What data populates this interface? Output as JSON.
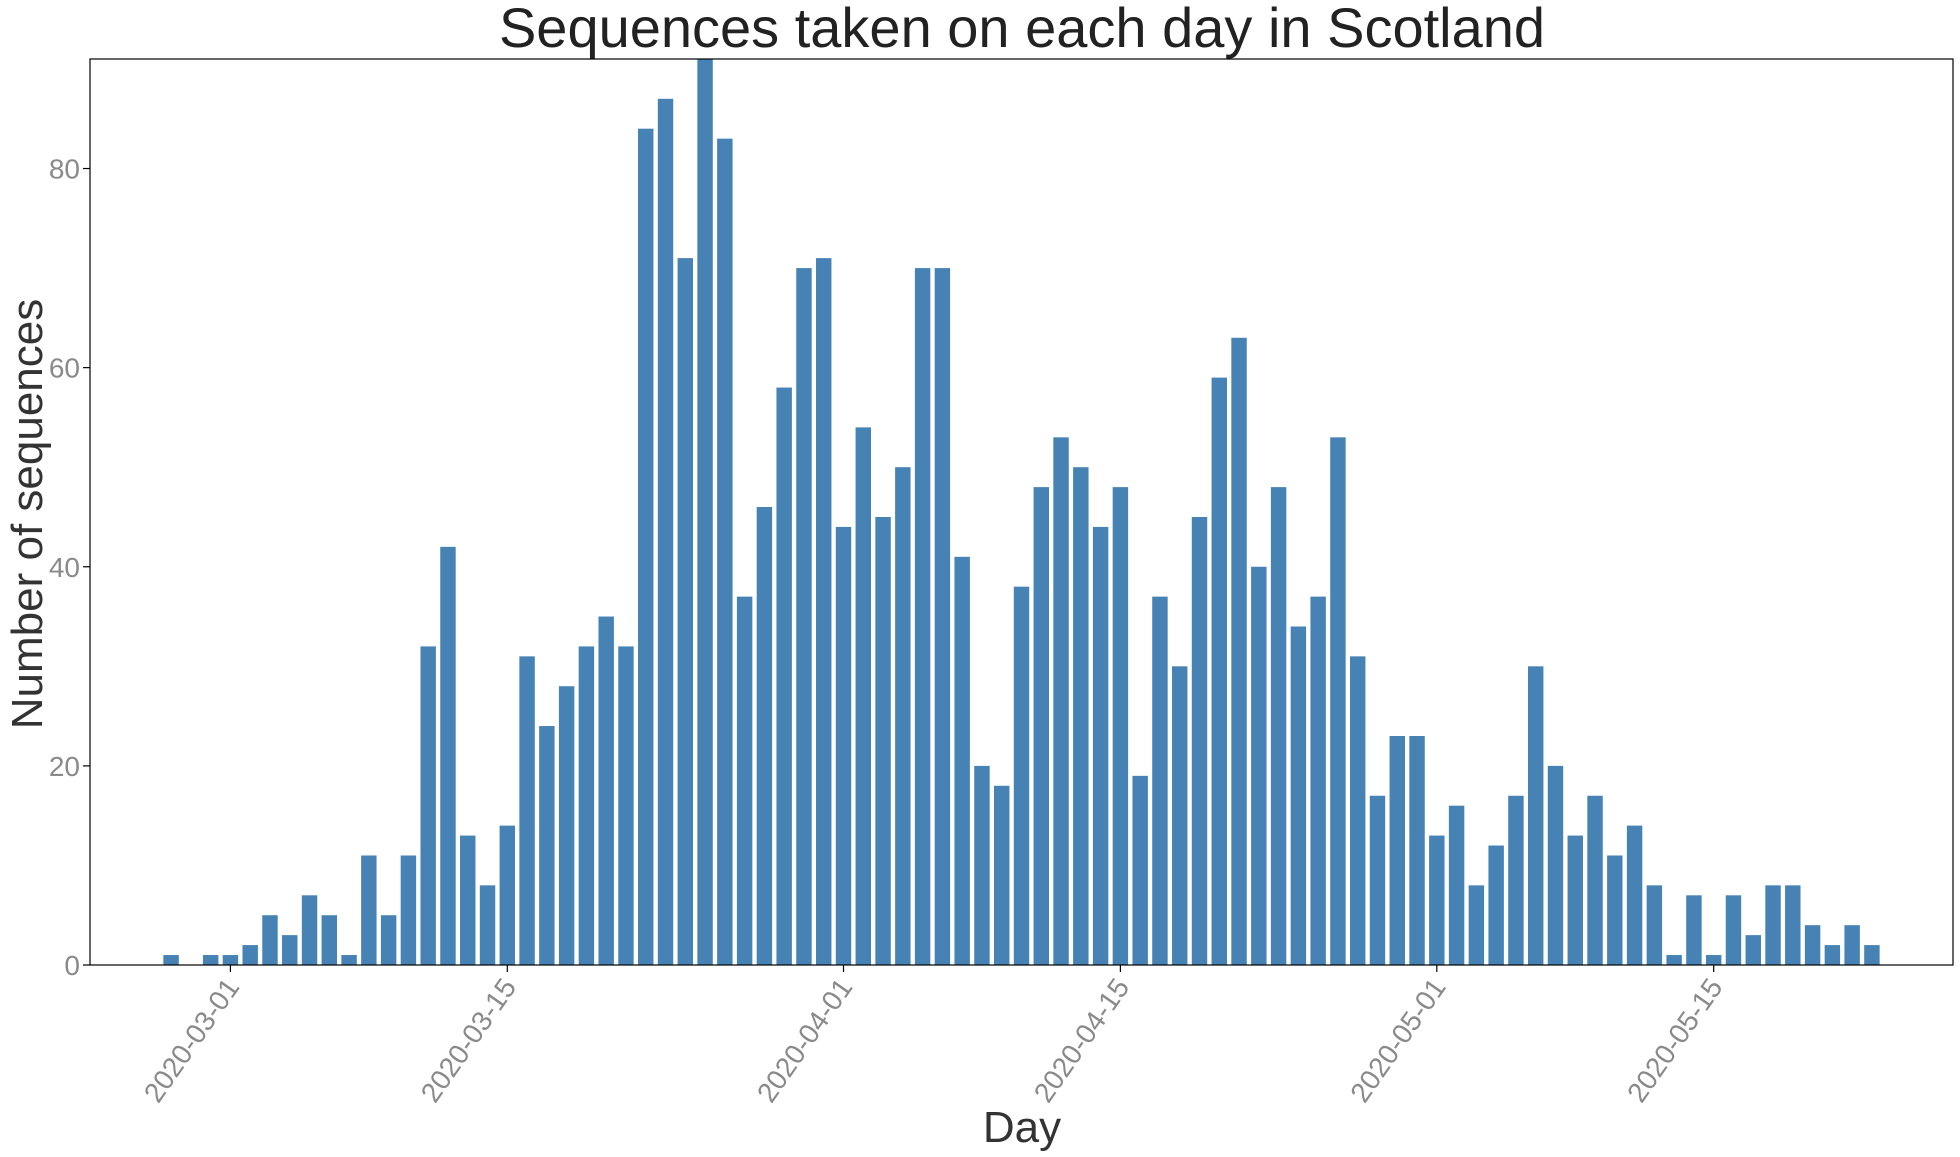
{
  "chart_data": {
    "type": "bar",
    "title": "Sequences taken on each day in Scotland",
    "xlabel": "Day",
    "ylabel": "Number of sequences",
    "x": [
      "2020-02-27",
      "2020-02-28",
      "2020-02-29",
      "2020-03-01",
      "2020-03-02",
      "2020-03-03",
      "2020-03-04",
      "2020-03-05",
      "2020-03-06",
      "2020-03-07",
      "2020-03-08",
      "2020-03-09",
      "2020-03-10",
      "2020-03-11",
      "2020-03-12",
      "2020-03-13",
      "2020-03-14",
      "2020-03-15",
      "2020-03-16",
      "2020-03-17",
      "2020-03-18",
      "2020-03-19",
      "2020-03-20",
      "2020-03-21",
      "2020-03-22",
      "2020-03-23",
      "2020-03-24",
      "2020-03-25",
      "2020-03-26",
      "2020-03-27",
      "2020-03-28",
      "2020-03-29",
      "2020-03-30",
      "2020-03-31",
      "2020-04-01",
      "2020-04-02",
      "2020-04-03",
      "2020-04-04",
      "2020-04-05",
      "2020-04-06",
      "2020-04-07",
      "2020-04-08",
      "2020-04-09",
      "2020-04-10",
      "2020-04-11",
      "2020-04-12",
      "2020-04-13",
      "2020-04-14",
      "2020-04-15",
      "2020-04-16",
      "2020-04-17",
      "2020-04-18",
      "2020-04-19",
      "2020-04-20",
      "2020-04-21",
      "2020-04-22",
      "2020-04-23",
      "2020-04-24",
      "2020-04-25",
      "2020-04-26",
      "2020-04-27",
      "2020-04-28",
      "2020-04-29",
      "2020-04-30",
      "2020-05-01",
      "2020-05-02",
      "2020-05-03",
      "2020-05-04",
      "2020-05-05",
      "2020-05-06",
      "2020-05-07",
      "2020-05-08",
      "2020-05-09",
      "2020-05-10",
      "2020-05-11",
      "2020-05-12",
      "2020-05-13",
      "2020-05-14",
      "2020-05-15",
      "2020-05-16",
      "2020-05-17",
      "2020-05-18",
      "2020-05-19",
      "2020-05-20",
      "2020-05-21",
      "2020-05-22",
      "2020-05-23"
    ],
    "values": [
      1,
      0,
      1,
      1,
      2,
      5,
      3,
      7,
      5,
      1,
      11,
      5,
      11,
      32,
      42,
      13,
      8,
      14,
      31,
      24,
      28,
      32,
      35,
      32,
      84,
      87,
      71,
      91,
      83,
      37,
      46,
      58,
      70,
      71,
      44,
      54,
      45,
      50,
      70,
      70,
      41,
      20,
      18,
      38,
      48,
      53,
      50,
      44,
      48,
      19,
      37,
      30,
      45,
      59,
      63,
      40,
      48,
      34,
      37,
      53,
      31,
      17,
      23,
      23,
      13,
      16,
      8,
      12,
      17,
      30,
      20,
      13,
      17,
      11,
      14,
      8,
      1,
      7,
      1,
      7,
      3,
      8,
      8,
      4,
      2,
      4,
      2
    ],
    "ylim": [
      0,
      91
    ],
    "yticks": [
      0,
      20,
      40,
      60,
      80
    ],
    "xticks": [
      "2020-03-01",
      "2020-03-15",
      "2020-04-01",
      "2020-04-15",
      "2020-05-01",
      "2020-05-15"
    ],
    "grid": false,
    "legend": "none",
    "colors": {
      "bar": "#4682b4",
      "axis": "#000000",
      "tick_label": "#8a8a8a",
      "title": "#222222",
      "axis_label": "#333333"
    }
  }
}
